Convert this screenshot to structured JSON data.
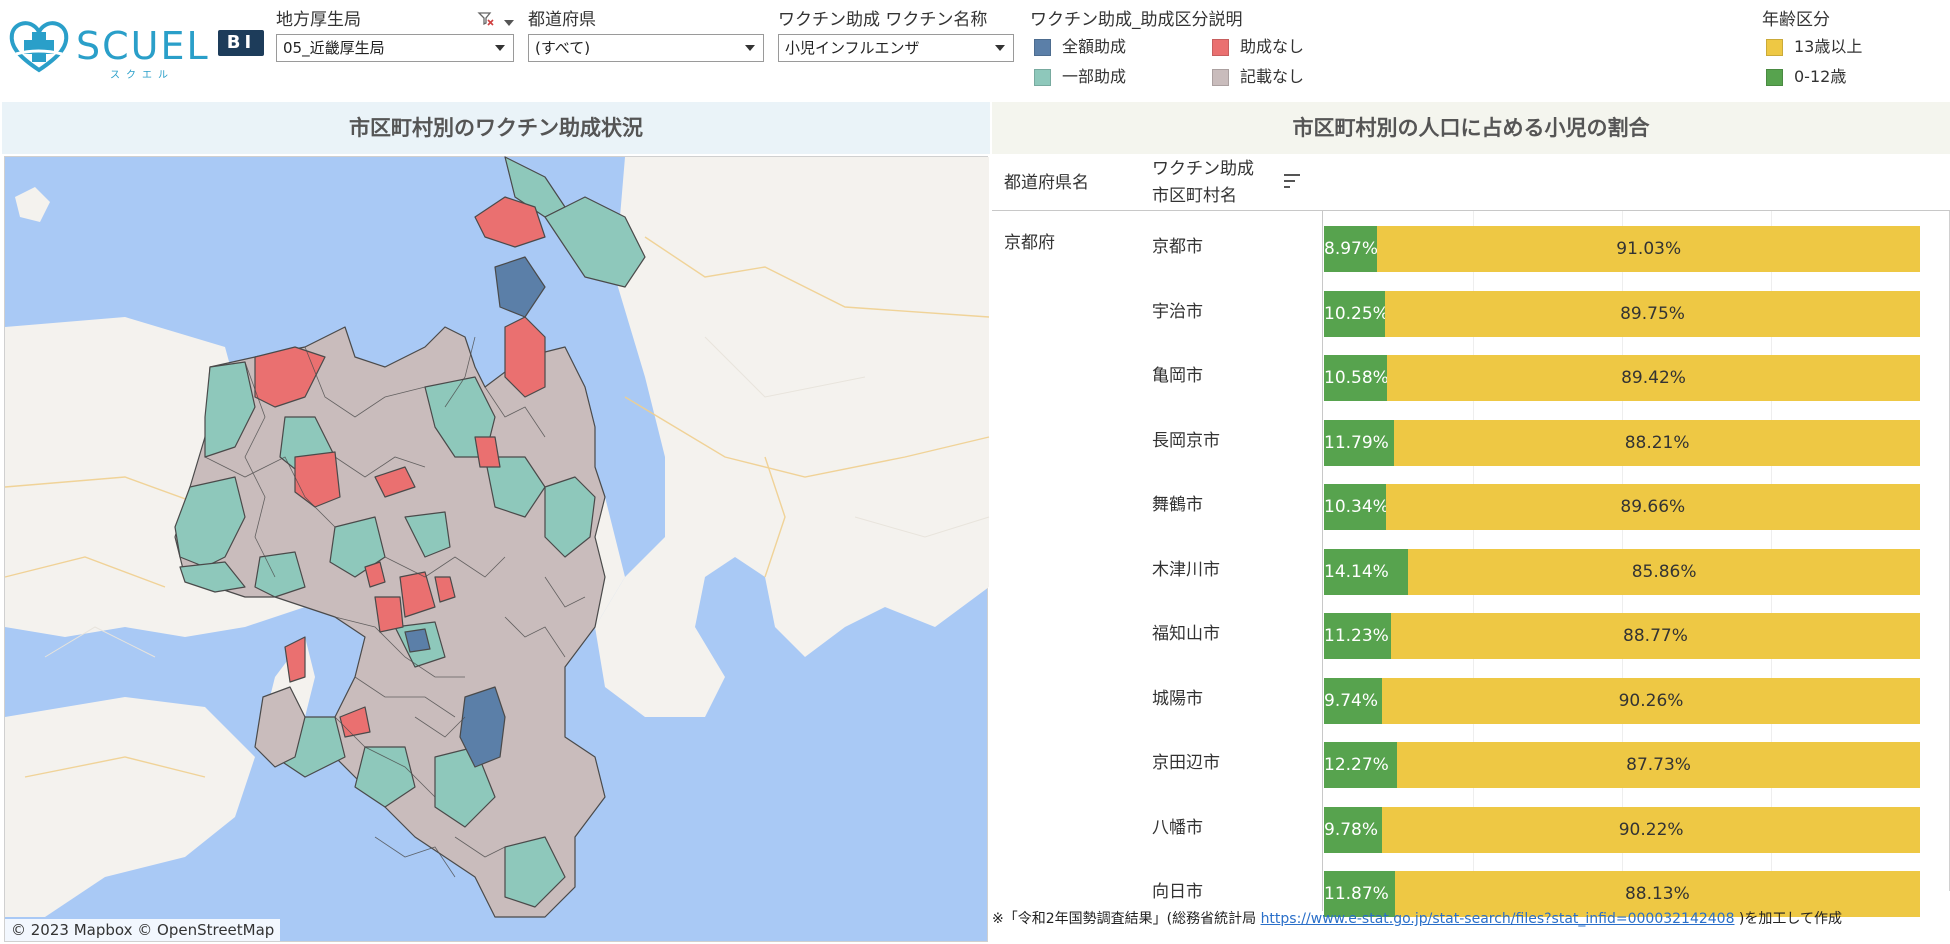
{
  "brand": {
    "name": "SCUEL",
    "kana": "スクエル",
    "badge": "BI"
  },
  "filters": [
    {
      "label": "地方厚生局",
      "value": "05_近畿厚生局"
    },
    {
      "label": "都道府県",
      "value": "(すべて)"
    },
    {
      "label": "ワクチン助成 ワクチン名称",
      "value": "小児インフルエンザ"
    }
  ],
  "subsidy_legend": {
    "title": "ワクチン助成_助成区分説明",
    "items": [
      {
        "label": "全額助成",
        "color": "#5b7fa8"
      },
      {
        "label": "助成なし",
        "color": "#ea7070"
      },
      {
        "label": "一部助成",
        "color": "#8ec8bb"
      },
      {
        "label": "記載なし",
        "color": "#c9bcbc"
      }
    ]
  },
  "age_legend": {
    "title": "年齢区分",
    "items": [
      {
        "label": "13歳以上",
        "color": "#eec844"
      },
      {
        "label": "0-12歳",
        "color": "#57a34e"
      }
    ]
  },
  "map_panel": {
    "title": "市区町村別のワクチン助成状況",
    "credit": "© 2023 Mapbox  © OpenStreetMap"
  },
  "table_panel": {
    "title": "市区町村別の人口に占める小児の割合",
    "col_pref": "都道府県名",
    "col_city_line1": "ワクチン助成",
    "col_city_line2": "市区町村名",
    "prefecture": "京都府"
  },
  "chart_data": {
    "type": "bar",
    "stacked": true,
    "percent": true,
    "categories": [
      "京都市",
      "宇治市",
      "亀岡市",
      "長岡京市",
      "舞鶴市",
      "木津川市",
      "福知山市",
      "城陽市",
      "京田辺市",
      "八幡市",
      "向日市"
    ],
    "series": [
      {
        "name": "0-12歳",
        "color": "#57a34e",
        "values": [
          8.97,
          10.25,
          10.58,
          11.79,
          10.34,
          14.14,
          11.23,
          9.74,
          12.27,
          9.78,
          11.87
        ],
        "labels": [
          "8.97%",
          "10.25%",
          "10.58%",
          "11.79%",
          "10.34%",
          "14.14%",
          "11.23%",
          "9.74%",
          "12.27%",
          "9.78%",
          "11.87%"
        ]
      },
      {
        "name": "13歳以上",
        "color": "#eec844",
        "values": [
          91.03,
          89.75,
          89.42,
          88.21,
          89.66,
          85.86,
          88.77,
          90.26,
          87.73,
          90.22,
          88.13
        ],
        "labels": [
          "91.03%",
          "89.75%",
          "89.42%",
          "88.21%",
          "89.66%",
          "85.86%",
          "88.77%",
          "90.26%",
          "87.73%",
          "90.22%",
          "88.13%"
        ]
      }
    ],
    "xlim": [
      0,
      100
    ]
  },
  "footnote": {
    "prefix": "※「令和2年国勢調査結果」(総務省統計局 ",
    "link": "https://www.e-stat.go.jp/stat-search/files?stat_infid=000032142408",
    "suffix": " )を加工して作成"
  }
}
